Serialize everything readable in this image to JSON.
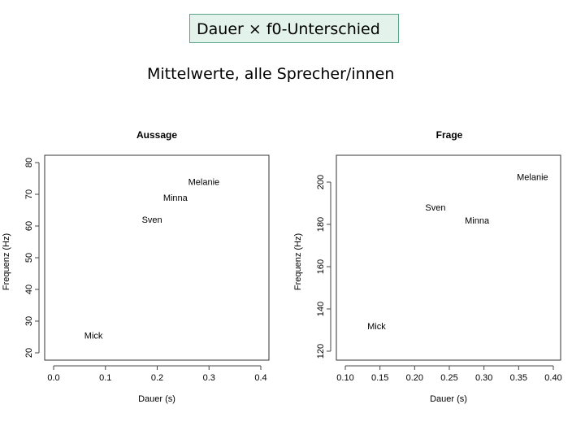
{
  "slide": {
    "title": "Dauer × f0-Unterschied",
    "subtitle": "Mittelwerte, alle Sprecher/innen"
  },
  "chart_data": [
    {
      "type": "scatter",
      "title": "Aussage",
      "xlabel": "Dauer (s)",
      "ylabel": "Frequenz (Hz)",
      "xlim": [
        0.0,
        0.4
      ],
      "ylim": [
        20,
        80
      ],
      "xticks": [
        "0.0",
        "0.1",
        "0.2",
        "0.3",
        "0.4"
      ],
      "yticks": [
        "20",
        "30",
        "40",
        "50",
        "60",
        "70",
        "80"
      ],
      "grid": false,
      "points": [
        {
          "label": "Melanie",
          "x": 0.29,
          "y": 74
        },
        {
          "label": "Minna",
          "x": 0.235,
          "y": 69
        },
        {
          "label": "Sven",
          "x": 0.19,
          "y": 62
        },
        {
          "label": "Mick",
          "x": 0.077,
          "y": 25.5
        }
      ]
    },
    {
      "type": "scatter",
      "title": "Frage",
      "xlabel": "Dauer (s)",
      "ylabel": "Frequenz (Hz)",
      "xlim": [
        0.1,
        0.4
      ],
      "ylim": [
        120,
        200
      ],
      "xticks": [
        "0.10",
        "0.15",
        "0.20",
        "0.25",
        "0.30",
        "0.35",
        "0.40"
      ],
      "yticks": [
        "120",
        "140",
        "160",
        "180",
        "200"
      ],
      "grid": false,
      "points": [
        {
          "label": "Melanie",
          "x": 0.37,
          "y": 202.5
        },
        {
          "label": "Sven",
          "x": 0.23,
          "y": 188
        },
        {
          "label": "Minna",
          "x": 0.29,
          "y": 182
        },
        {
          "label": "Mick",
          "x": 0.145,
          "y": 132
        }
      ]
    }
  ]
}
